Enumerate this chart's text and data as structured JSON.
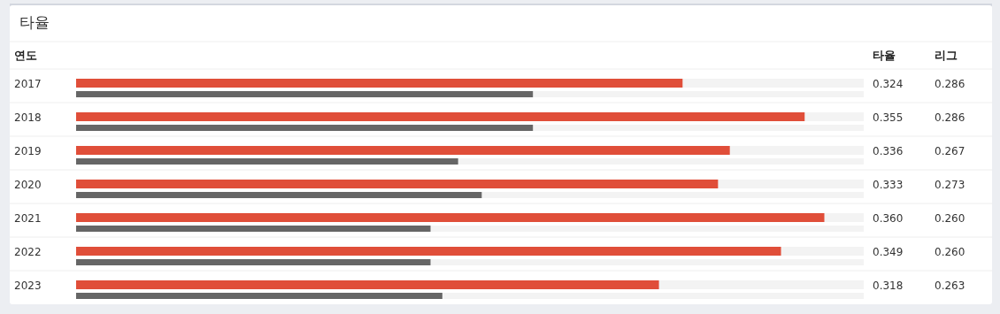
{
  "chart_data": {
    "type": "bar",
    "orientation": "horizontal",
    "title": "타율",
    "ylabel": "연도",
    "categories": [
      "2017",
      "2018",
      "2019",
      "2020",
      "2021",
      "2022",
      "2023"
    ],
    "xlim": [
      0.17,
      0.37
    ],
    "tick_labels": "y",
    "series": [
      {
        "name": "타율",
        "color": "#e04e39",
        "values": [
          0.324,
          0.355,
          0.336,
          0.333,
          0.36,
          0.349,
          0.318
        ],
        "value_labels": [
          "0.324",
          "0.355",
          "0.336",
          "0.333",
          "0.360",
          "0.349",
          "0.318"
        ]
      },
      {
        "name": "리그",
        "color": "#666666",
        "values": [
          0.286,
          0.286,
          0.267,
          0.273,
          0.26,
          0.26,
          0.263
        ],
        "value_labels": [
          "0.286",
          "0.286",
          "0.267",
          "0.273",
          "0.260",
          "0.260",
          "0.263"
        ]
      }
    ]
  }
}
